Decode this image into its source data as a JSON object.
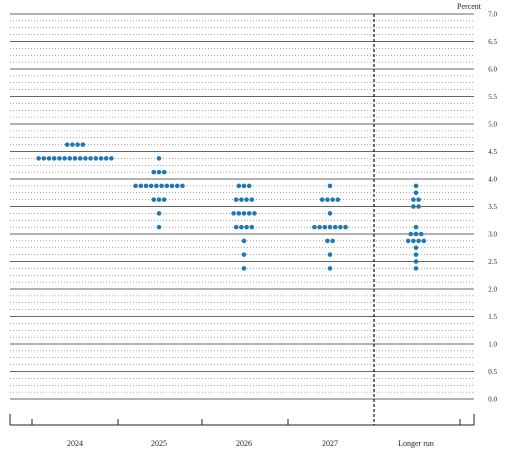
{
  "chart_data": {
    "type": "scatter",
    "unit_label": "Percent",
    "ylim": [
      0.0,
      7.0
    ],
    "y_ticks": [
      "0.0",
      "0.5",
      "1.0",
      "1.5",
      "2.0",
      "2.5",
      "3.0",
      "3.5",
      "4.0",
      "4.5",
      "5.0",
      "5.5",
      "6.0",
      "6.5",
      "7.0"
    ],
    "categories": [
      "2024",
      "2025",
      "2026",
      "2027",
      "Longer run"
    ],
    "grid": "dotted at 0.125 steps, solid at whole and half percents",
    "dot_color": "#1f77b4",
    "points": [
      {
        "category": "2024",
        "y": 4.625,
        "count": 4
      },
      {
        "category": "2024",
        "y": 4.375,
        "count": 15
      },
      {
        "category": "2025",
        "y": 4.375,
        "count": 1
      },
      {
        "category": "2025",
        "y": 4.125,
        "count": 3
      },
      {
        "category": "2025",
        "y": 3.875,
        "count": 10
      },
      {
        "category": "2025",
        "y": 3.625,
        "count": 3
      },
      {
        "category": "2025",
        "y": 3.375,
        "count": 1
      },
      {
        "category": "2025",
        "y": 3.125,
        "count": 1
      },
      {
        "category": "2026",
        "y": 3.875,
        "count": 3
      },
      {
        "category": "2026",
        "y": 3.625,
        "count": 4
      },
      {
        "category": "2026",
        "y": 3.375,
        "count": 5
      },
      {
        "category": "2026",
        "y": 3.125,
        "count": 4
      },
      {
        "category": "2026",
        "y": 2.875,
        "count": 1
      },
      {
        "category": "2026",
        "y": 2.625,
        "count": 1
      },
      {
        "category": "2026",
        "y": 2.375,
        "count": 1
      },
      {
        "category": "2027",
        "y": 3.875,
        "count": 1
      },
      {
        "category": "2027",
        "y": 3.625,
        "count": 4
      },
      {
        "category": "2027",
        "y": 3.375,
        "count": 1
      },
      {
        "category": "2027",
        "y": 3.125,
        "count": 7
      },
      {
        "category": "2027",
        "y": 2.875,
        "count": 2
      },
      {
        "category": "2027",
        "y": 2.625,
        "count": 1
      },
      {
        "category": "2027",
        "y": 2.375,
        "count": 1
      },
      {
        "category": "Longer run",
        "y": 3.875,
        "count": 1
      },
      {
        "category": "Longer run",
        "y": 3.75,
        "count": 1
      },
      {
        "category": "Longer run",
        "y": 3.625,
        "count": 2
      },
      {
        "category": "Longer run",
        "y": 3.5,
        "count": 2
      },
      {
        "category": "Longer run",
        "y": 3.125,
        "count": 1
      },
      {
        "category": "Longer run",
        "y": 3.0,
        "count": 3
      },
      {
        "category": "Longer run",
        "y": 2.875,
        "count": 4
      },
      {
        "category": "Longer run",
        "y": 2.75,
        "count": 1
      },
      {
        "category": "Longer run",
        "y": 2.625,
        "count": 1
      },
      {
        "category": "Longer run",
        "y": 2.5,
        "count": 1
      },
      {
        "category": "Longer run",
        "y": 2.375,
        "count": 1
      }
    ]
  }
}
